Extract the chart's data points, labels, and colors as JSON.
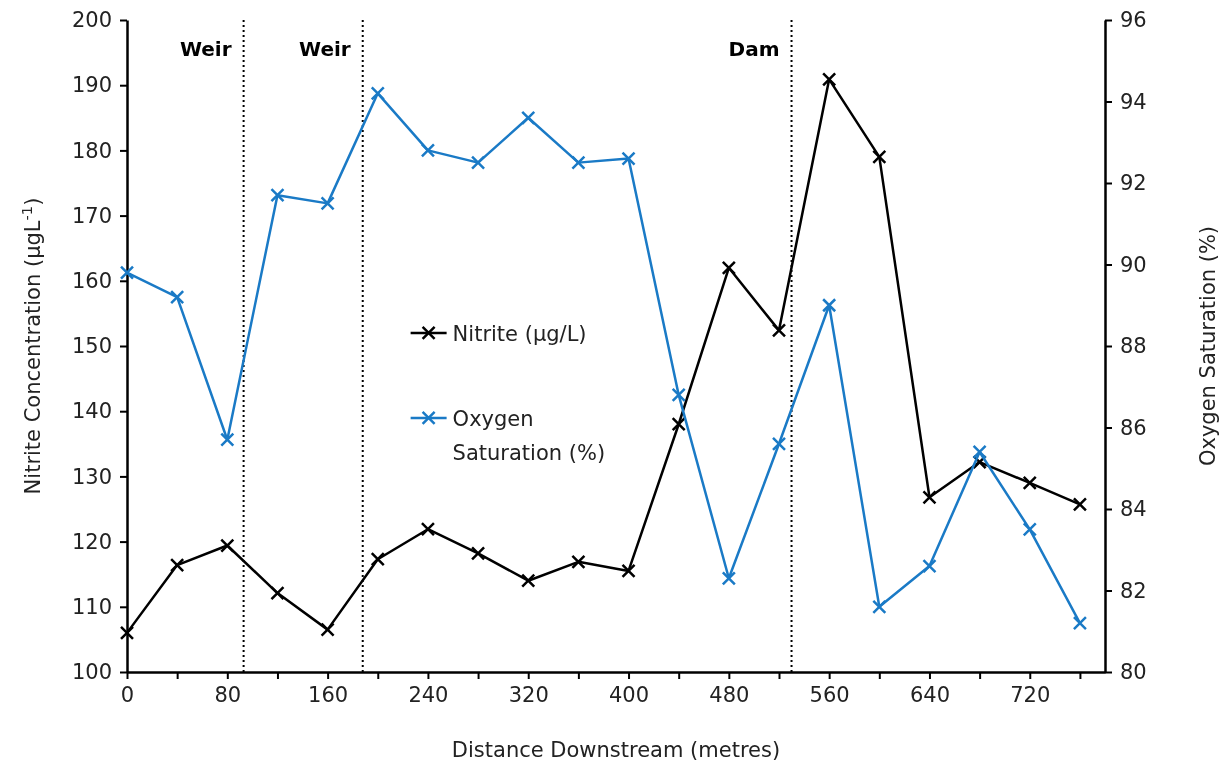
{
  "chart_data": {
    "type": "line",
    "xlabel": "Distance Downstream (metres)",
    "ylabel": "Nitrite Concentration (μgL$^{-1}$)",
    "y2label": "Oxygen Saturation (%)",
    "x": [
      0,
      40,
      80,
      120,
      160,
      200,
      240,
      280,
      320,
      360,
      400,
      440,
      480,
      520,
      560,
      600,
      640,
      680,
      720,
      760
    ],
    "xlim": [
      0,
      780
    ],
    "xticks": [
      0,
      {
        "value": 40,
        "label": null
      },
      80,
      {
        "value": 120,
        "label": null
      },
      160,
      {
        "value": 200,
        "label": null
      },
      240,
      {
        "value": 280,
        "label": null
      },
      320,
      {
        "value": 360,
        "label": null
      },
      400,
      {
        "value": 440,
        "label": null
      },
      480,
      {
        "value": 520,
        "label": null
      },
      560,
      {
        "value": 600,
        "label": null
      },
      640,
      {
        "value": 680,
        "label": null
      },
      720,
      {
        "value": 760,
        "label": null
      }
    ],
    "ylim": [
      100,
      200
    ],
    "yticks": [
      100,
      110,
      120,
      130,
      140,
      150,
      160,
      170,
      180,
      190,
      200
    ],
    "y2lim": [
      80,
      96
    ],
    "y2ticks": [
      80,
      82,
      84,
      86,
      88,
      90,
      92,
      94,
      96
    ],
    "series": [
      {
        "name": "Nitrite (μg/L)",
        "color": "#000000",
        "values": [
          106.0,
          116.4,
          119.4,
          112.1,
          106.5,
          117.3,
          121.9,
          118.2,
          114.0,
          116.9,
          115.5,
          138.0,
          162.0,
          152.4,
          190.9,
          179.0,
          126.8,
          132.2,
          129.0,
          125.7
        ]
      },
      {
        "name": "Oxygen Saturation (%)",
        "color": "#1a7ac6",
        "axis": "y2",
        "values": [
          89.8,
          89.2,
          85.7,
          91.7,
          91.5,
          94.2,
          92.8,
          92.5,
          93.6,
          92.5,
          92.6,
          86.8,
          82.3,
          85.6,
          89.0,
          81.6,
          82.6,
          85.4,
          83.5,
          81.2
        ]
      }
    ],
    "ref_lines": [
      {
        "axis": "x",
        "value": 93,
        "label": "Weir",
        "line_style": "dotted"
      },
      {
        "axis": "x",
        "value": 188,
        "label": "Weir",
        "line_style": "dotted"
      },
      {
        "axis": "x",
        "value": 530,
        "label": "Dam",
        "line_style": "dotted"
      }
    ],
    "marker": "cross",
    "line_style": "solid",
    "legend": "center",
    "grid": false
  }
}
